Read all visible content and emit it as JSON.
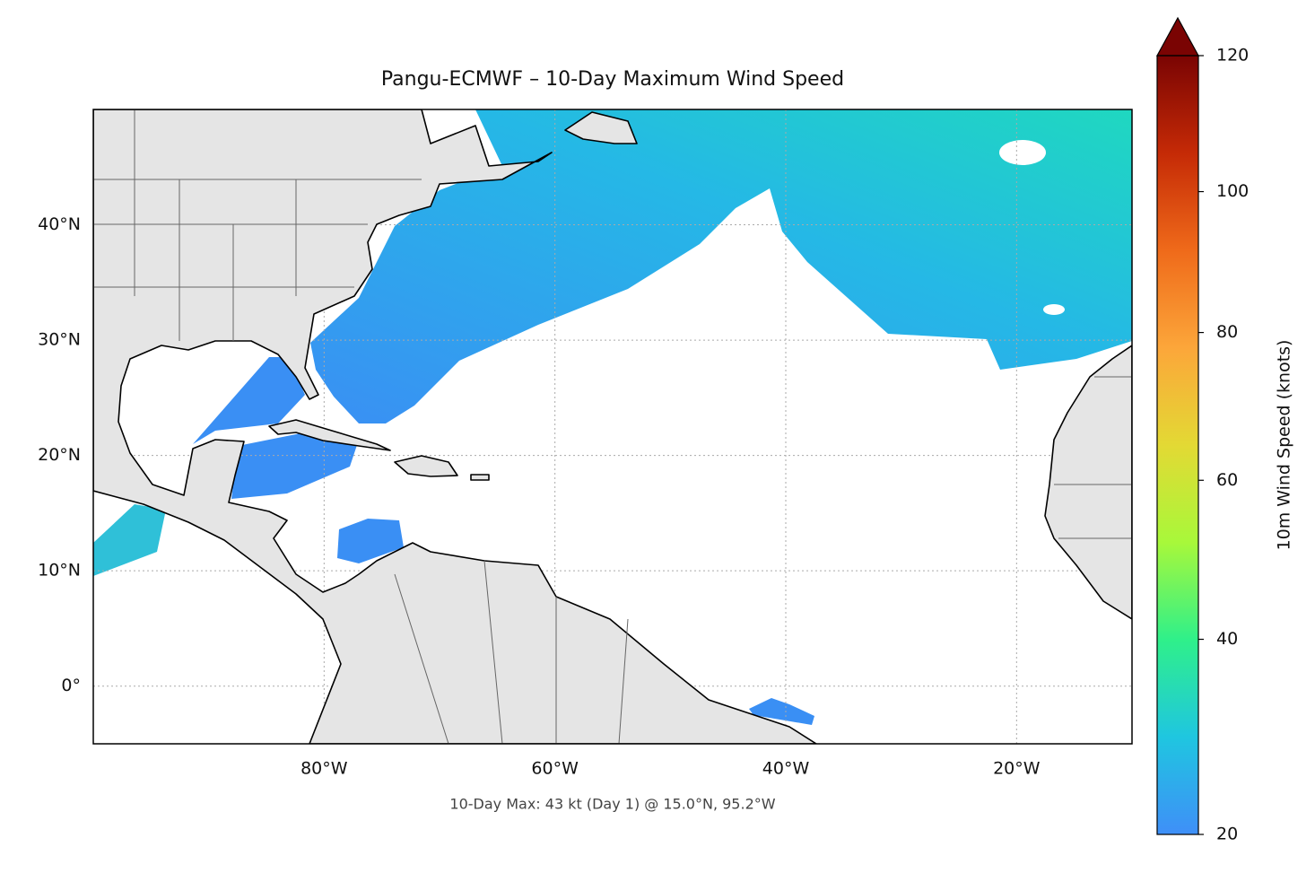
{
  "chart_data": {
    "type": "map",
    "title": "Pangu-ECMWF – 10-Day Maximum Wind Speed",
    "annotation": "10-Day Max: 43 kt (Day 1) @ 15.0°N, 95.2°W",
    "xlim": [
      -100,
      -10
    ],
    "ylim": [
      -5,
      50
    ],
    "xticks": [
      {
        "value": -80,
        "label": "80°W"
      },
      {
        "value": -60,
        "label": "60°W"
      },
      {
        "value": -40,
        "label": "40°W"
      },
      {
        "value": -20,
        "label": "20°W"
      }
    ],
    "yticks": [
      {
        "value": 0,
        "label": "0°"
      },
      {
        "value": 10,
        "label": "10°N"
      },
      {
        "value": 20,
        "label": "20°N"
      },
      {
        "value": 30,
        "label": "30°N"
      },
      {
        "value": 40,
        "label": "40°N"
      }
    ],
    "grid": true,
    "colorbar": {
      "label": "10m Wind Speed (knots)",
      "lim": [
        20,
        120
      ],
      "ticks": [
        20,
        40,
        60,
        80,
        100,
        120
      ],
      "gamma": 0.86,
      "extend": "max",
      "colors": [
        "#3f8ff8",
        "#1fc6e0",
        "#2ff08a",
        "#a8f83a",
        "#e3d934",
        "#fca63a",
        "#ef6a1a",
        "#c52a06",
        "#7a0403"
      ]
    }
  }
}
